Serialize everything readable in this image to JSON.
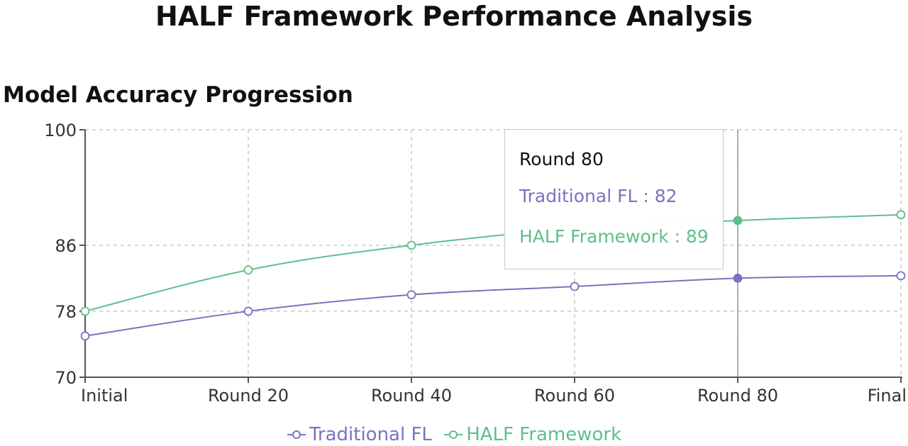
{
  "page": {
    "title": "HALF Framework Performance Analysis"
  },
  "chart_data": {
    "type": "line",
    "title": "Model Accuracy Progression",
    "xlabel": "",
    "ylabel": "",
    "categories": [
      "Initial",
      "Round 20",
      "Round 40",
      "Round 60",
      "Round 80",
      "Final"
    ],
    "yticks": [
      70,
      78,
      86,
      100
    ],
    "ylim": [
      70,
      100
    ],
    "grid": true,
    "legend_position": "bottom-center",
    "series": [
      {
        "name": "Traditional FL",
        "color": "#7b72c0",
        "values": [
          75,
          78,
          80,
          81,
          82,
          82.3
        ]
      },
      {
        "name": "HALF Framework",
        "color": "#5fbf8a",
        "values": [
          78,
          83,
          86,
          88,
          89,
          89.7
        ]
      }
    ],
    "tooltip": {
      "category": "Round 80",
      "rows": [
        {
          "label": "Traditional FL : 82",
          "color": "#7b72c0"
        },
        {
          "label": "HALF Framework : 89",
          "color": "#5fbf8a"
        }
      ]
    }
  }
}
